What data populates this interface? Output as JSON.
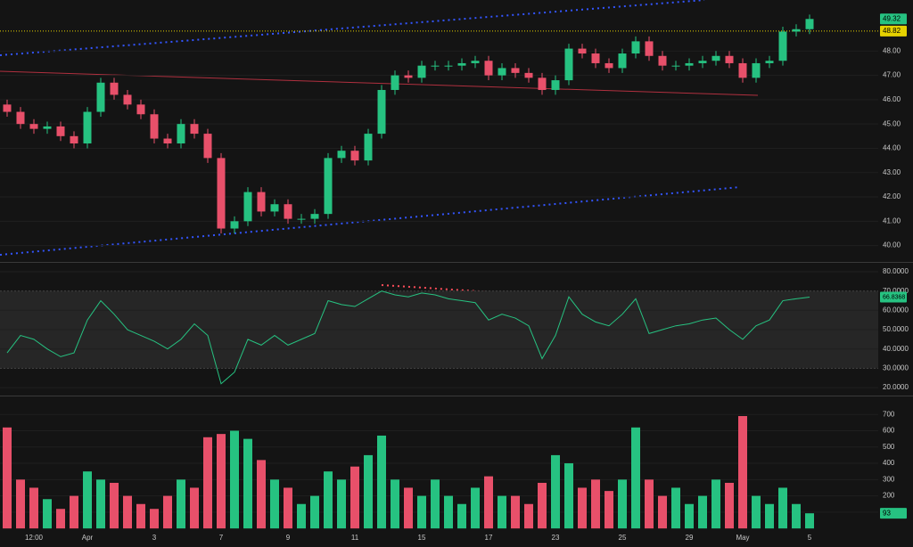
{
  "chart_data": [
    {
      "type": "candlestick",
      "categories": [
        null,
        null,
        "12:00",
        null,
        null,
        null,
        "Apr",
        null,
        null,
        null,
        null,
        "3",
        null,
        null,
        null,
        null,
        "7",
        null,
        null,
        null,
        null,
        "9",
        null,
        null,
        null,
        null,
        "11",
        null,
        null,
        null,
        null,
        "15",
        null,
        null,
        null,
        null,
        "17",
        null,
        null,
        null,
        null,
        "23",
        null,
        null,
        null,
        null,
        "25",
        null,
        null,
        null,
        null,
        "29",
        null,
        null,
        null,
        "May",
        null,
        null,
        null,
        null,
        "5"
      ],
      "open": [
        45.8,
        45.5,
        45.0,
        44.8,
        44.9,
        44.5,
        44.2,
        45.5,
        46.7,
        46.2,
        45.8,
        45.4,
        44.4,
        44.2,
        45.0,
        44.6,
        43.6,
        40.7,
        41.0,
        42.2,
        41.4,
        41.7,
        41.1,
        41.1,
        41.3,
        43.6,
        43.9,
        43.5,
        44.6,
        46.4,
        47.0,
        46.9,
        47.4,
        47.4,
        47.4,
        47.5,
        47.6,
        47.0,
        47.3,
        47.1,
        46.9,
        46.4,
        46.8,
        48.1,
        47.9,
        47.5,
        47.3,
        47.9,
        48.4,
        47.8,
        47.4,
        47.4,
        47.5,
        47.6,
        47.8,
        47.5,
        46.9,
        47.5,
        47.6,
        48.8,
        48.9
      ],
      "high": [
        46.0,
        45.7,
        45.2,
        45.1,
        45.1,
        44.7,
        45.7,
        46.9,
        46.9,
        46.4,
        46.0,
        45.6,
        44.6,
        45.2,
        45.2,
        44.8,
        43.8,
        41.2,
        42.4,
        42.4,
        41.9,
        41.9,
        41.3,
        41.5,
        43.8,
        44.1,
        44.1,
        44.8,
        46.6,
        47.2,
        47.2,
        47.6,
        47.6,
        47.6,
        47.7,
        47.8,
        47.8,
        47.5,
        47.5,
        47.3,
        47.1,
        47.0,
        48.3,
        48.3,
        48.1,
        47.7,
        48.1,
        48.6,
        48.6,
        48.0,
        47.6,
        47.7,
        47.8,
        48.0,
        48.0,
        47.7,
        47.7,
        47.8,
        49.0,
        49.1,
        49.5
      ],
      "low": [
        45.3,
        44.8,
        44.6,
        44.6,
        44.3,
        44.0,
        44.0,
        45.3,
        46.0,
        45.6,
        45.2,
        44.2,
        44.0,
        44.0,
        44.4,
        43.4,
        40.5,
        40.5,
        40.8,
        41.2,
        41.2,
        40.9,
        40.9,
        40.9,
        41.1,
        43.4,
        43.3,
        43.3,
        44.4,
        46.2,
        46.7,
        46.7,
        47.2,
        47.2,
        47.2,
        47.3,
        46.8,
        46.8,
        46.9,
        46.7,
        46.2,
        46.2,
        46.6,
        47.7,
        47.3,
        47.1,
        47.1,
        47.7,
        47.6,
        47.2,
        47.2,
        47.2,
        47.3,
        47.4,
        47.3,
        46.7,
        46.7,
        47.3,
        47.4,
        48.6,
        48.7
      ],
      "close": [
        45.5,
        45.0,
        44.8,
        44.9,
        44.5,
        44.2,
        45.5,
        46.7,
        46.2,
        45.8,
        45.4,
        44.4,
        44.2,
        45.0,
        44.6,
        43.6,
        40.7,
        41.0,
        42.2,
        41.4,
        41.7,
        41.1,
        41.1,
        41.3,
        43.6,
        43.9,
        43.5,
        44.6,
        46.4,
        47.0,
        46.9,
        47.4,
        47.4,
        47.4,
        47.5,
        47.6,
        47.0,
        47.3,
        47.1,
        46.9,
        46.4,
        46.8,
        48.1,
        47.9,
        47.5,
        47.3,
        47.9,
        48.4,
        47.8,
        47.4,
        47.4,
        47.5,
        47.6,
        47.8,
        47.5,
        46.9,
        47.5,
        47.6,
        48.8,
        48.9,
        49.32
      ],
      "up_color": "#26c281",
      "down_color": "#e8506a",
      "ylim": [
        39.4,
        50.1
      ],
      "yticks": [
        {
          "value": 40,
          "label": "40.00"
        },
        {
          "value": 41,
          "label": "41.00"
        },
        {
          "value": 42,
          "label": "42.00"
        },
        {
          "value": 43,
          "label": "43.00"
        },
        {
          "value": 44,
          "label": "44.00"
        },
        {
          "value": 45,
          "label": "45.00"
        },
        {
          "value": 46,
          "label": "46.00"
        },
        {
          "value": 47,
          "label": "47.00"
        },
        {
          "value": 48,
          "label": "48.00"
        }
      ],
      "reference_line": 48.82,
      "reference_color": "#e6d200"
    },
    {
      "type": "line",
      "values": [
        38,
        47,
        45,
        40,
        36,
        38,
        55,
        65,
        58,
        50,
        47,
        44,
        40,
        45,
        53,
        47,
        22,
        28,
        45,
        42,
        47,
        42,
        45,
        48,
        65,
        63,
        62,
        66,
        70,
        68,
        67,
        69,
        68,
        66,
        65,
        64,
        55,
        58,
        56,
        52,
        35,
        47,
        67,
        58,
        54,
        52,
        58,
        66,
        48,
        50,
        52,
        53,
        55,
        56,
        50,
        45,
        52,
        55,
        65,
        66,
        66.8368
      ],
      "color": "#26c281",
      "ylim": [
        16.8,
        83.7
      ],
      "yticks": [
        {
          "value": 20,
          "label": "20.0000"
        },
        {
          "value": 30,
          "label": "30.0000"
        },
        {
          "value": 40,
          "label": "40.0000"
        },
        {
          "value": 50,
          "label": "50.0000"
        },
        {
          "value": 60,
          "label": "60.0000"
        },
        {
          "value": 70,
          "label": "70.0000"
        },
        {
          "value": 80,
          "label": "80.0000"
        }
      ],
      "band": [
        30,
        70
      ]
    },
    {
      "type": "bar",
      "values": [
        620,
        300,
        250,
        180,
        120,
        200,
        350,
        300,
        280,
        200,
        150,
        120,
        200,
        300,
        250,
        560,
        580,
        600,
        550,
        420,
        300,
        250,
        150,
        200,
        350,
        300,
        380,
        450,
        570,
        300,
        250,
        200,
        300,
        200,
        150,
        250,
        320,
        200,
        200,
        150,
        280,
        450,
        400,
        250,
        300,
        230,
        300,
        620,
        300,
        200,
        250,
        150,
        200,
        300,
        280,
        690,
        200,
        150,
        250,
        150,
        93
      ],
      "ylim": [
        -10,
        805
      ],
      "yticks": [
        100,
        200,
        300,
        400,
        500,
        600,
        700
      ]
    }
  ]
}
